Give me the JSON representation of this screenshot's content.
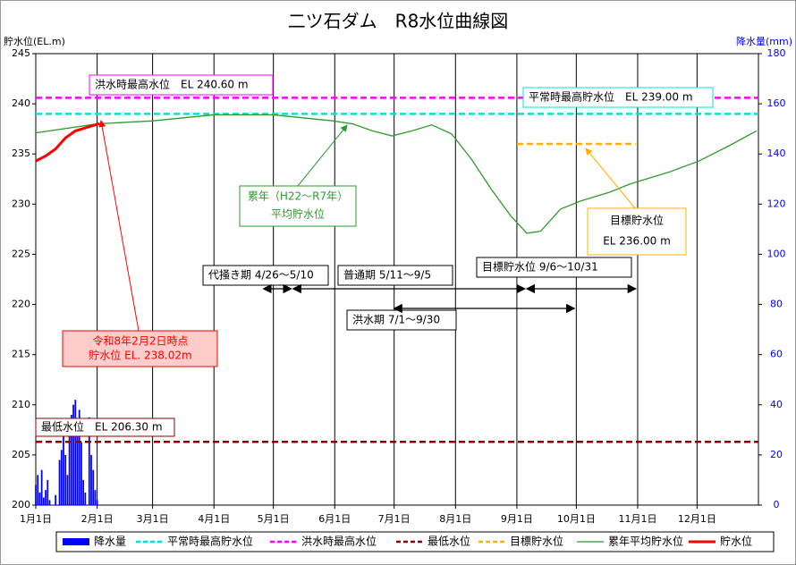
{
  "chart_data": {
    "type": "line",
    "title": "二ツ石ダム　R8水位曲線図",
    "y_label": "貯水位(EL.m)",
    "y2_label": "降水量(mm)",
    "xlim": [
      0,
      365
    ],
    "xticks": [
      {
        "value": 0,
        "label": "1月1日"
      },
      {
        "value": 31,
        "label": "2月1日"
      },
      {
        "value": 59,
        "label": "3月1日"
      },
      {
        "value": 90,
        "label": "4月1日"
      },
      {
        "value": 120,
        "label": "5月1日"
      },
      {
        "value": 151,
        "label": "6月1日"
      },
      {
        "value": 181,
        "label": "7月1日"
      },
      {
        "value": 212,
        "label": "8月1日"
      },
      {
        "value": 243,
        "label": "9月1日"
      },
      {
        "value": 273,
        "label": "10月1日"
      },
      {
        "value": 304,
        "label": "11月1日"
      },
      {
        "value": 334,
        "label": "12月1日"
      }
    ],
    "ylim": [
      200,
      245
    ],
    "yticks": [
      200,
      205,
      210,
      215,
      220,
      225,
      230,
      235,
      240,
      245
    ],
    "y2lim": [
      0,
      180
    ],
    "y2ticks": [
      0,
      20,
      40,
      60,
      80,
      100,
      120,
      140,
      160,
      180
    ],
    "grid": true,
    "series": [
      {
        "name": "降水量",
        "type": "bar",
        "axis": "y2",
        "color": "#0000ff",
        "x": [
          0,
          1,
          2,
          3,
          4,
          5,
          6,
          7,
          8,
          9,
          10,
          11,
          12,
          13,
          14,
          15,
          16,
          17,
          18,
          19,
          20,
          21,
          22,
          23,
          24,
          25,
          26,
          27,
          28,
          29,
          30,
          31,
          32
        ],
        "values": [
          8,
          12,
          5,
          14,
          3,
          6,
          10,
          2,
          0,
          0,
          4,
          0,
          18,
          22,
          30,
          20,
          12,
          28,
          36,
          40,
          42,
          30,
          38,
          25,
          10,
          5,
          0,
          35,
          20,
          14,
          6,
          2,
          0
        ]
      },
      {
        "name": "平常時最高貯水位",
        "color": "#00e0e0",
        "dashed": true,
        "width": 2.5,
        "x": [
          0,
          365
        ],
        "values": [
          239,
          239
        ]
      },
      {
        "name": "洪水時最高水位",
        "color": "#ff00ff",
        "dashed": true,
        "width": 2.5,
        "x": [
          0,
          365
        ],
        "values": [
          240.6,
          240.6
        ]
      },
      {
        "name": "最低水位",
        "color": "#8b0000",
        "dashed": true,
        "width": 2.5,
        "x": [
          0,
          365
        ],
        "values": [
          206.3,
          206.3
        ]
      },
      {
        "name": "目標貯水位",
        "color": "#ffb000",
        "dashed": true,
        "width": 2.5,
        "x": [
          243,
          303
        ],
        "values": [
          236,
          236
        ]
      },
      {
        "name": "累年平均貯水位",
        "color": "#2e9b2e",
        "dashed": false,
        "width": 1.3,
        "x": [
          0,
          31,
          59,
          90,
          120,
          135,
          150,
          160,
          170,
          180,
          190,
          200,
          210,
          220,
          230,
          240,
          248,
          255,
          265,
          275,
          290,
          300,
          320,
          335,
          350,
          364
        ],
        "values": [
          237.1,
          238.0,
          238.3,
          238.9,
          238.9,
          238.6,
          238.3,
          238.0,
          237.3,
          236.8,
          237.3,
          237.9,
          237.0,
          234.5,
          231.5,
          228.8,
          227.1,
          227.3,
          229.5,
          230.3,
          231.2,
          232.0,
          233.2,
          234.3,
          235.8,
          237.3
        ]
      },
      {
        "name": "貯水位",
        "color": "#ff0000",
        "dashed": false,
        "width": 3,
        "x": [
          0,
          5,
          10,
          15,
          20,
          25,
          32
        ],
        "values": [
          234.3,
          234.8,
          235.5,
          236.6,
          237.3,
          237.6,
          238.02
        ]
      }
    ],
    "annotations": [
      "洪水時最高水位　EL 240.60 m",
      "平常時最高貯水位　EL 239.00 m",
      "最低水位　EL 206.30 m",
      "目標貯水位",
      "EL 236.00 m",
      "累年（H22～R7年）",
      "平均貯水位",
      "令和8年2月2日時点",
      "貯水位 EL. 238.02m"
    ],
    "periods": [
      {
        "label": "代掻き期 4/26～5/10",
        "x": [
          115,
          129
        ]
      },
      {
        "label": "普通期 5/11～9/5",
        "x": [
          130,
          247
        ]
      },
      {
        "label": "目標貯水位 9/6～10/31",
        "x": [
          248,
          303
        ]
      },
      {
        "label": "洪水期 7/1～9/30",
        "x": [
          181,
          272
        ]
      }
    ]
  }
}
